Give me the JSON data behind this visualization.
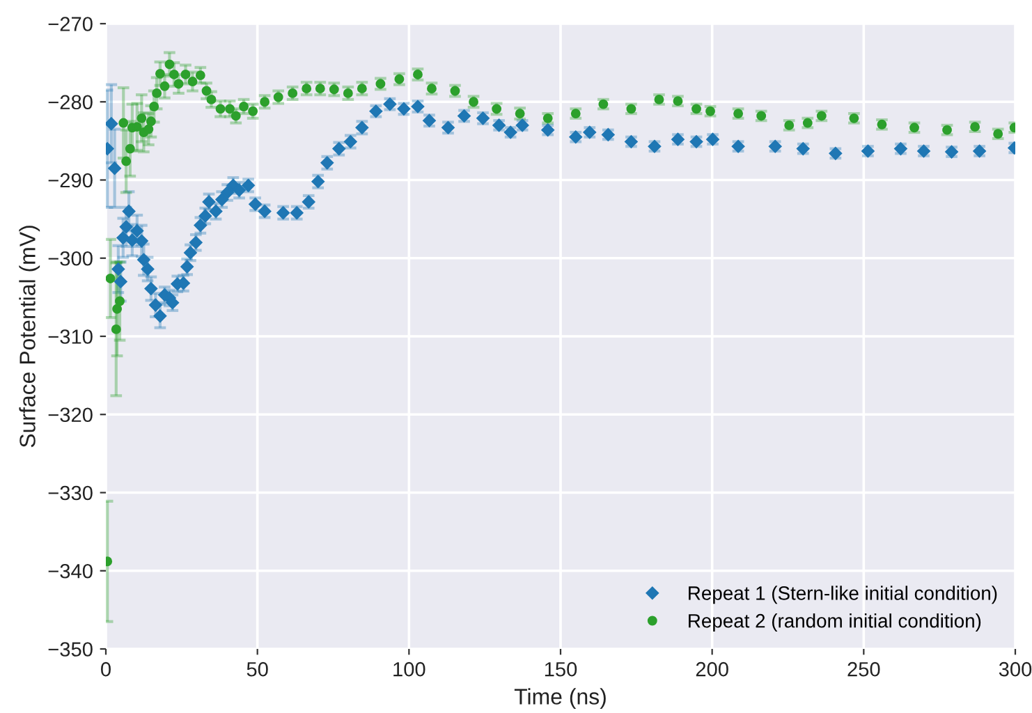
{
  "chart_data": {
    "type": "scatter",
    "xlabel": "Time (ns)",
    "ylabel": "Surface Potential (mV)",
    "xlim": [
      0,
      300
    ],
    "ylim": [
      -350,
      -270
    ],
    "xticks": [
      0,
      50,
      100,
      150,
      200,
      250,
      300
    ],
    "yticks": [
      -350,
      -340,
      -330,
      -320,
      -310,
      -300,
      -290,
      -280,
      -270
    ],
    "grid": true,
    "legend": "bottom right",
    "series": [
      {
        "name": "Repeat 1 (Stern-like initial condition)",
        "color": "#1f77b4",
        "marker": "diamond",
        "x": [
          0.5,
          1.8,
          2.9,
          4.1,
          4.9,
          5.7,
          6.7,
          7.6,
          8.7,
          10.3,
          11.8,
          12.5,
          13.8,
          14.9,
          16.4,
          17.9,
          19.4,
          21,
          22,
          23.6,
          25.6,
          26.8,
          27.9,
          29.7,
          31.2,
          32.8,
          34,
          36.3,
          38.3,
          40.1,
          42,
          44,
          47,
          49.3,
          52.4,
          58.5,
          63,
          66.9,
          70,
          73,
          76.9,
          80.7,
          84.5,
          89.1,
          93.7,
          98.3,
          102.9,
          106.7,
          112.9,
          118.2,
          124.4,
          129.7,
          133.5,
          137.4,
          145.8,
          155,
          159.6,
          165.7,
          173.3,
          181,
          188.7,
          194.8,
          200.2,
          208.6,
          220.8,
          230,
          240.7,
          251.4,
          262.2,
          269.8,
          279,
          288.2,
          299.7
        ],
        "values": [
          -286,
          -282.8,
          -288.5,
          -301.4,
          -303,
          -297.4,
          -296,
          -294,
          -297.7,
          -296.5,
          -297.8,
          -300.2,
          -301.4,
          -303.9,
          -306,
          -307.4,
          -304.7,
          -305.1,
          -305.7,
          -303.3,
          -303.2,
          -301.1,
          -299.3,
          -298,
          -295.8,
          -294.6,
          -292.8,
          -294,
          -292.5,
          -291.6,
          -290.7,
          -291.3,
          -290.7,
          -293.1,
          -294,
          -294.2,
          -294.2,
          -292.8,
          -290.2,
          -287.8,
          -286,
          -285.1,
          -283.3,
          -281.2,
          -280.3,
          -280.9,
          -280.6,
          -282.4,
          -283.3,
          -281.8,
          -282.1,
          -283,
          -283.9,
          -283,
          -283.6,
          -284.5,
          -283.9,
          -284.2,
          -285.1,
          -285.7,
          -284.8,
          -285.1,
          -284.8,
          -285.7,
          -285.7,
          -286,
          -286.6,
          -286.3,
          -286,
          -286.3,
          -286.4,
          -286.3,
          -285.9
        ],
        "errors": [
          7.5,
          5,
          5,
          3,
          2.5,
          2.5,
          2.5,
          2.5,
          2,
          2,
          2,
          2,
          1.5,
          1.5,
          1.5,
          1.5,
          1,
          1,
          1,
          1,
          1,
          1,
          1,
          1,
          1,
          1,
          1,
          1,
          1,
          1,
          1,
          1,
          0.8,
          0.8,
          0.8,
          0.8,
          0.8,
          0.8,
          0.8,
          0.8,
          0.8,
          0.8,
          0.8,
          0.7,
          0.7,
          0.7,
          0.7,
          0.7,
          0.7,
          0.7,
          0.7,
          0.6,
          0.6,
          0.6,
          0.6,
          0.6,
          0.6,
          0.6,
          0.6,
          0.6,
          0.6,
          0.6,
          0.6,
          0.6,
          0.6,
          0.6,
          0.6,
          0.6,
          0.6,
          0.6,
          0.6,
          0.6,
          0.6
        ]
      },
      {
        "name": "Repeat 2 (random initial condition)",
        "color": "#2ca02c",
        "marker": "circle",
        "x": [
          0.5,
          1.5,
          3.4,
          3.7,
          4.6,
          5.8,
          6.7,
          8,
          8.7,
          10.3,
          11.8,
          12.5,
          14.1,
          14.9,
          15.9,
          16.8,
          17.9,
          19.4,
          21,
          22.5,
          24,
          26.3,
          28.6,
          31.2,
          33.2,
          34.8,
          37.8,
          40.9,
          42.9,
          45.5,
          48.5,
          52.4,
          56.9,
          61.6,
          66.2,
          70.7,
          75.3,
          79.9,
          84.5,
          90.6,
          96.8,
          102.9,
          107.5,
          115.2,
          121.3,
          128.9,
          136.6,
          145.8,
          155,
          164.1,
          173.3,
          182.5,
          188.7,
          194.8,
          199.4,
          208.6,
          216.2,
          225.4,
          231.5,
          236.1,
          246.8,
          256,
          266.7,
          277.5,
          286.7,
          294.3,
          299.7
        ],
        "values": [
          -338.8,
          -302.6,
          -309.1,
          -306.5,
          -305.5,
          -282.7,
          -287.6,
          -286,
          -283.3,
          -283.2,
          -282.1,
          -283.9,
          -283.5,
          -282.5,
          -280.6,
          -278.9,
          -276.4,
          -278,
          -275.2,
          -276.5,
          -277.7,
          -276.5,
          -277.4,
          -276.6,
          -278.6,
          -279.7,
          -280.9,
          -280.9,
          -281.8,
          -280.6,
          -281.2,
          -280,
          -279.4,
          -278.9,
          -278.3,
          -278.3,
          -278.4,
          -278.9,
          -278.3,
          -277.7,
          -277.1,
          -276.5,
          -278.3,
          -278.6,
          -280,
          -280.9,
          -281.5,
          -282.1,
          -281.5,
          -280.3,
          -280.9,
          -279.7,
          -279.9,
          -280.9,
          -281.2,
          -281.5,
          -281.8,
          -283,
          -282.7,
          -281.8,
          -282.1,
          -282.9,
          -283.3,
          -283.6,
          -283.2,
          -284.1,
          -283.3
        ],
        "errors": [
          7.7,
          5,
          8.5,
          6,
          5,
          4.5,
          4,
          3.5,
          3,
          3,
          3,
          2.5,
          2,
          2,
          2,
          2,
          1.5,
          1.5,
          1.5,
          1.5,
          1.2,
          1.2,
          1.2,
          1,
          1,
          1,
          1,
          1,
          0.9,
          0.9,
          0.9,
          0.8,
          0.8,
          0.8,
          0.8,
          0.8,
          0.8,
          0.8,
          0.8,
          0.7,
          0.7,
          0.7,
          0.7,
          0.7,
          0.7,
          0.7,
          0.7,
          0.6,
          0.6,
          0.6,
          0.6,
          0.6,
          0.6,
          0.6,
          0.6,
          0.6,
          0.6,
          0.6,
          0.6,
          0.6,
          0.6,
          0.6,
          0.6,
          0.6,
          0.6,
          0.6,
          0.6
        ]
      }
    ]
  }
}
